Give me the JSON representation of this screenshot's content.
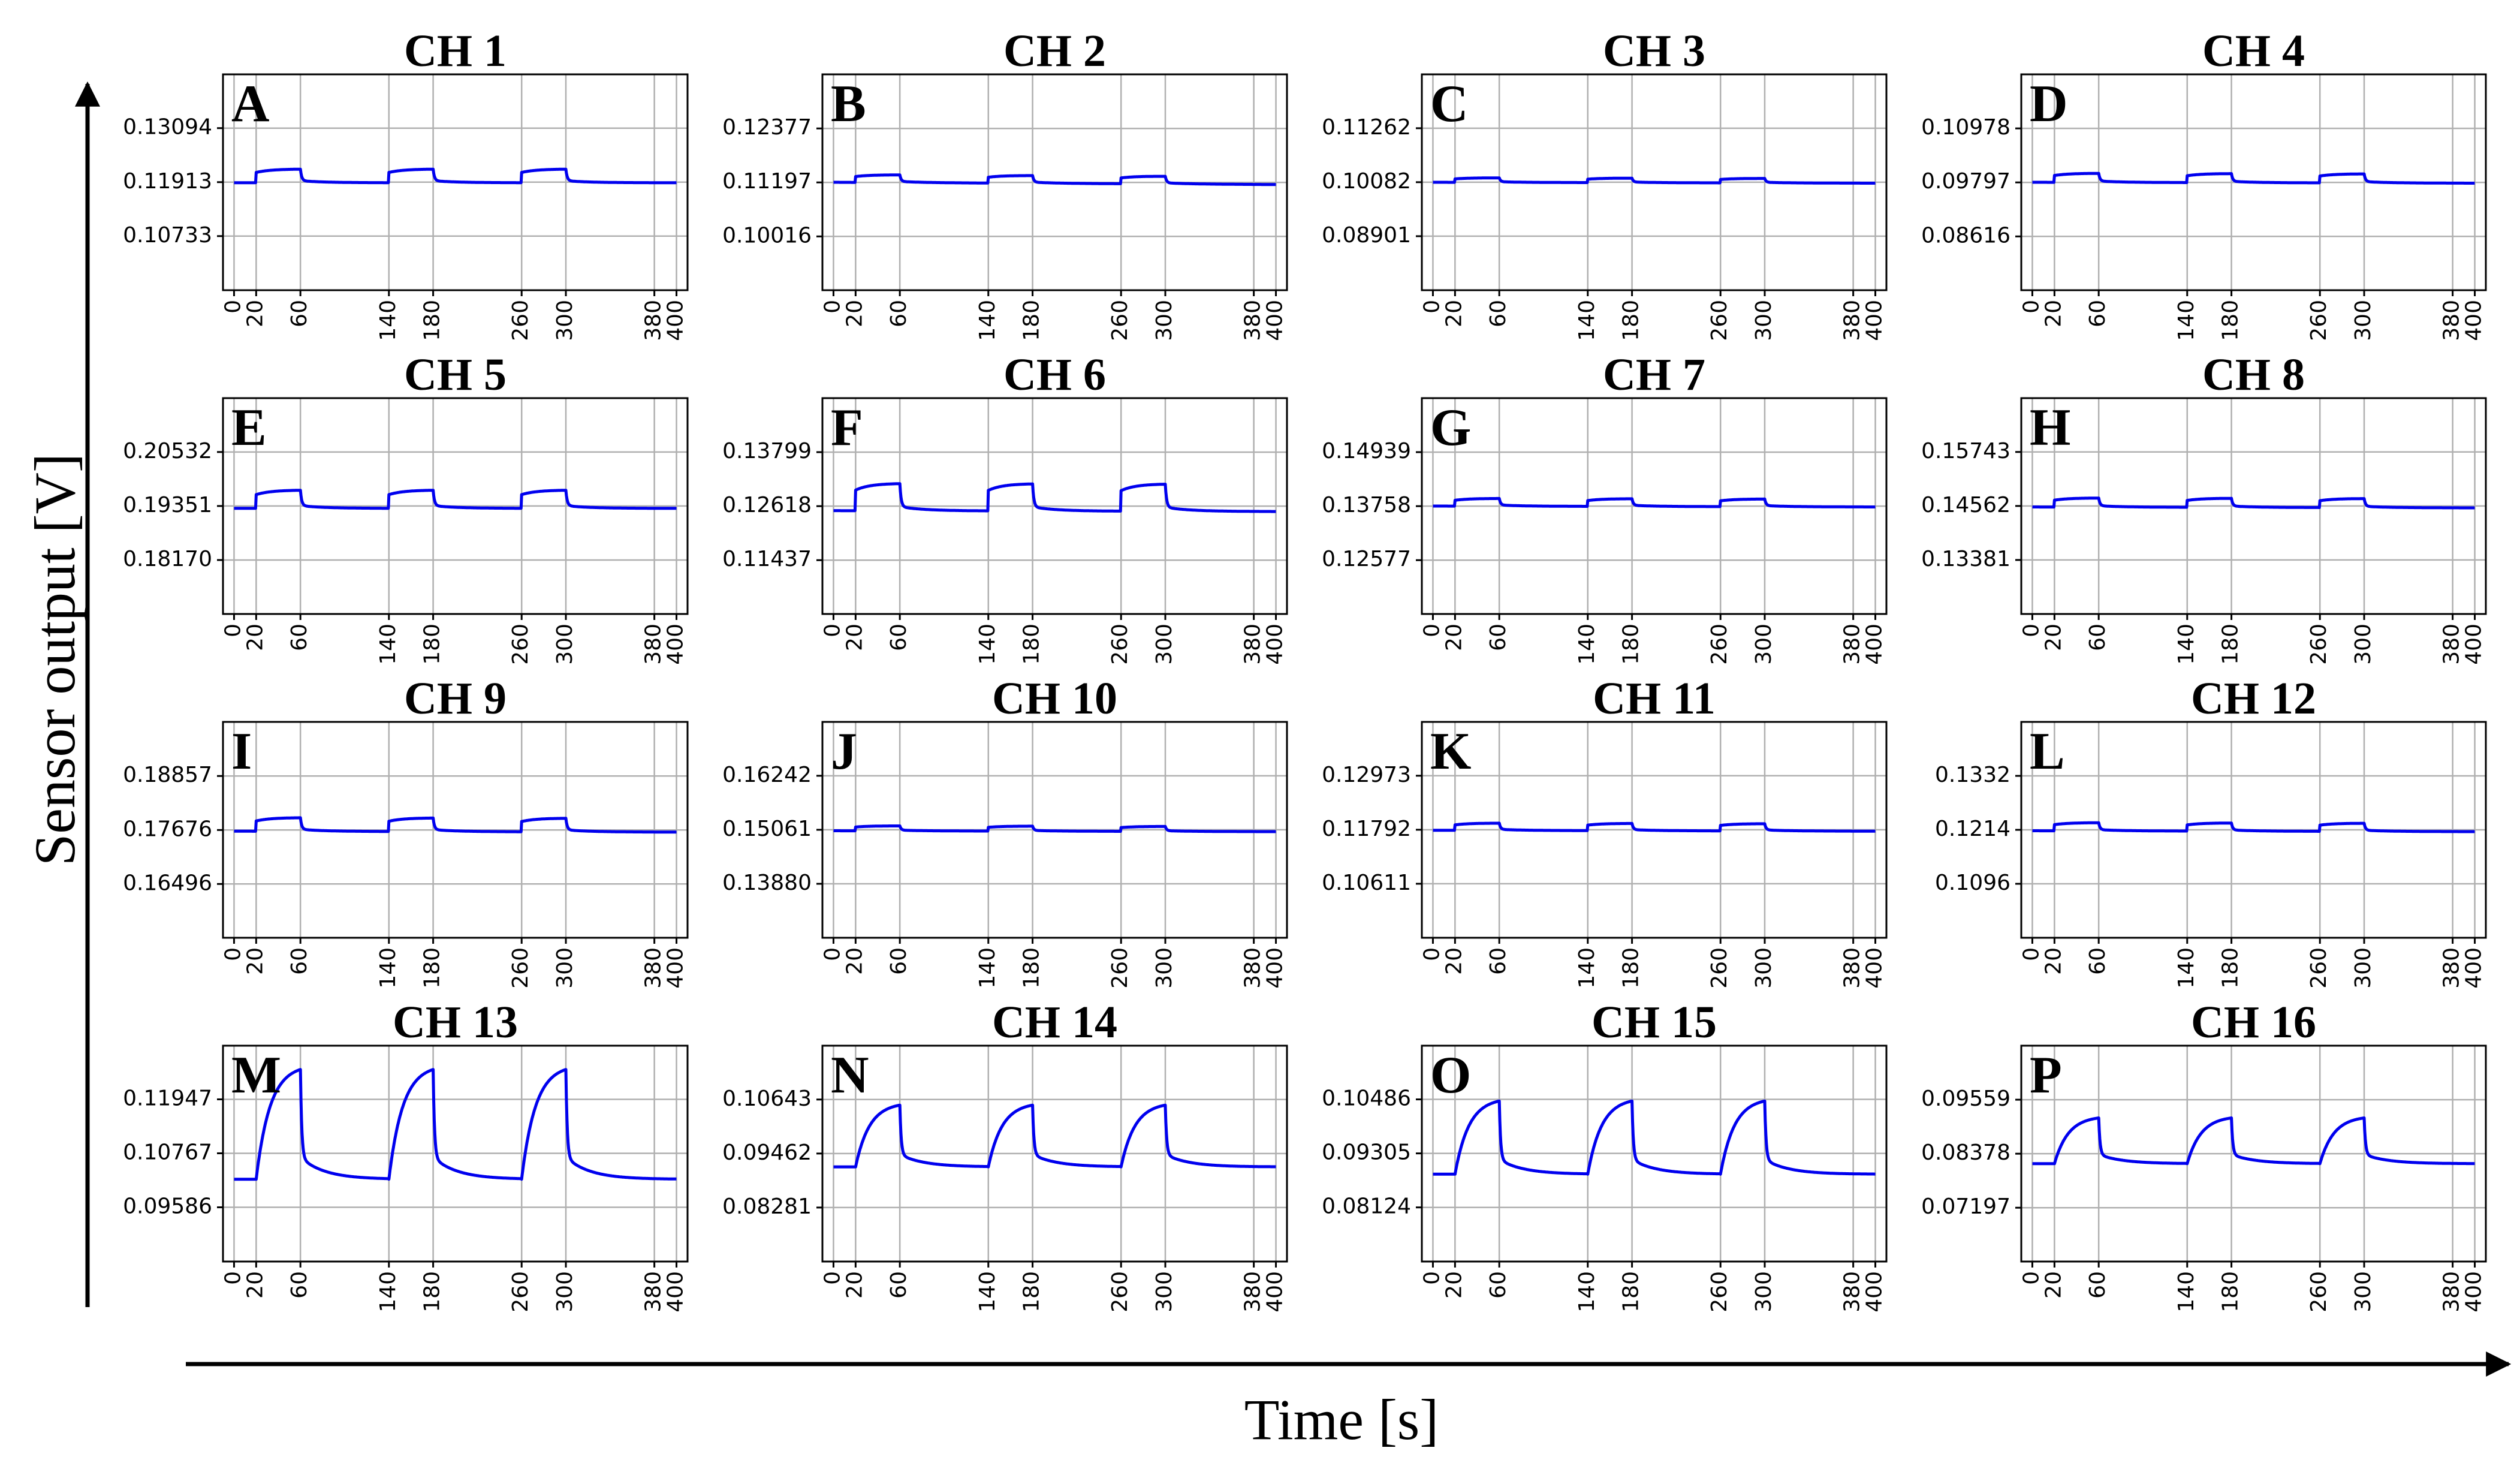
{
  "figure": {
    "ylabel": "Sensor output [V]",
    "xlabel": "Time [s]",
    "line_color": "#0000ee"
  },
  "chart_data": [
    {
      "type": "line",
      "letter": "A",
      "title": "CH 1",
      "yticks": [
        "0.13094",
        "0.11913",
        "0.10733"
      ],
      "ylim": [
        0.0955,
        0.1427
      ],
      "baseline": 0.119,
      "rise": 0.003,
      "final": 0.119,
      "shape": "step"
    },
    {
      "type": "line",
      "letter": "B",
      "title": "CH 2",
      "yticks": [
        "0.12377",
        "0.11197",
        "0.10016"
      ],
      "ylim": [
        0.0884,
        0.1356
      ],
      "baseline": 0.112,
      "rise": 0.0017,
      "final": 0.1115,
      "shape": "step"
    },
    {
      "type": "line",
      "letter": "C",
      "title": "CH 3",
      "yticks": [
        "0.11262",
        "0.10082",
        "0.08901"
      ],
      "ylim": [
        0.0772,
        0.1244
      ],
      "baseline": 0.1008,
      "rise": 0.001,
      "final": 0.1006,
      "shape": "step"
    },
    {
      "type": "line",
      "letter": "D",
      "title": "CH 4",
      "yticks": [
        "0.10978",
        "0.09797",
        "0.08616"
      ],
      "ylim": [
        0.0744,
        0.1216
      ],
      "baseline": 0.098,
      "rise": 0.002,
      "final": 0.0978,
      "shape": "step"
    },
    {
      "type": "line",
      "letter": "E",
      "title": "CH 5",
      "yticks": [
        "0.20532",
        "0.19351",
        "0.18170"
      ],
      "ylim": [
        0.1699,
        0.2171
      ],
      "baseline": 0.193,
      "rise": 0.004,
      "final": 0.193,
      "shape": "step"
    },
    {
      "type": "line",
      "letter": "F",
      "title": "CH 6",
      "yticks": [
        "0.13799",
        "0.12618",
        "0.11437"
      ],
      "ylim": [
        0.1026,
        0.1498
      ],
      "baseline": 0.1252,
      "rise": 0.006,
      "final": 0.125,
      "shape": "step"
    },
    {
      "type": "line",
      "letter": "G",
      "title": "CH 7",
      "yticks": [
        "0.14939",
        "0.13758",
        "0.12577"
      ],
      "ylim": [
        0.114,
        0.1612
      ],
      "baseline": 0.1376,
      "rise": 0.0017,
      "final": 0.1374,
      "shape": "step"
    },
    {
      "type": "line",
      "letter": "H",
      "title": "CH 8",
      "yticks": [
        "0.15743",
        "0.14562",
        "0.13381"
      ],
      "ylim": [
        0.122,
        0.1692
      ],
      "baseline": 0.1454,
      "rise": 0.002,
      "final": 0.1452,
      "shape": "step"
    },
    {
      "type": "line",
      "letter": "I",
      "title": "CH 9",
      "yticks": [
        "0.18857",
        "0.17676",
        "0.16496"
      ],
      "ylim": [
        0.1532,
        0.2004
      ],
      "baseline": 0.1765,
      "rise": 0.003,
      "final": 0.1763,
      "shape": "step"
    },
    {
      "type": "line",
      "letter": "J",
      "title": "CH 10",
      "yticks": [
        "0.16242",
        "0.15061",
        "0.13880"
      ],
      "ylim": [
        0.127,
        0.1742
      ],
      "baseline": 0.1504,
      "rise": 0.0011,
      "final": 0.1502,
      "shape": "step"
    },
    {
      "type": "line",
      "letter": "K",
      "title": "CH 11",
      "yticks": [
        "0.12973",
        "0.11792",
        "0.10611"
      ],
      "ylim": [
        0.0943,
        0.1415
      ],
      "baseline": 0.1178,
      "rise": 0.0016,
      "final": 0.1176,
      "shape": "step"
    },
    {
      "type": "line",
      "letter": "L",
      "title": "CH 12",
      "yticks": [
        "0.1332",
        "0.1214",
        "0.1096"
      ],
      "ylim": [
        0.0978,
        0.145
      ],
      "baseline": 0.1212,
      "rise": 0.0018,
      "final": 0.121,
      "shape": "step"
    },
    {
      "type": "line",
      "letter": "M",
      "title": "CH 13",
      "yticks": [
        "0.11947",
        "0.10767",
        "0.09586"
      ],
      "ylim": [
        0.084,
        0.1312
      ],
      "baseline": 0.102,
      "rise": 0.024,
      "final": 0.102,
      "shape": "charge"
    },
    {
      "type": "line",
      "letter": "N",
      "title": "CH 14",
      "yticks": [
        "0.10643",
        "0.09462",
        "0.08281"
      ],
      "ylim": [
        0.071,
        0.1182
      ],
      "baseline": 0.0917,
      "rise": 0.0135,
      "final": 0.0917,
      "shape": "charge"
    },
    {
      "type": "line",
      "letter": "O",
      "title": "CH 15",
      "yticks": [
        "0.10486",
        "0.09305",
        "0.08124"
      ],
      "ylim": [
        0.0694,
        0.1166
      ],
      "baseline": 0.0885,
      "rise": 0.016,
      "final": 0.0885,
      "shape": "charge"
    },
    {
      "type": "line",
      "letter": "P",
      "title": "CH 16",
      "yticks": [
        "0.09559",
        "0.08378",
        "0.07197"
      ],
      "ylim": [
        0.0602,
        0.1074
      ],
      "baseline": 0.0816,
      "rise": 0.01,
      "final": 0.0816,
      "shape": "charge"
    }
  ],
  "xaxis": {
    "xlim": [
      -10,
      410
    ],
    "ticks": [
      0,
      20,
      60,
      140,
      180,
      260,
      300,
      380,
      400
    ],
    "tick_labels": [
      "0",
      "20",
      "60",
      "140",
      "180",
      "260",
      "300",
      "380",
      "400"
    ]
  },
  "exposure_windows": [
    [
      20,
      60
    ],
    [
      140,
      180
    ],
    [
      260,
      300
    ]
  ]
}
